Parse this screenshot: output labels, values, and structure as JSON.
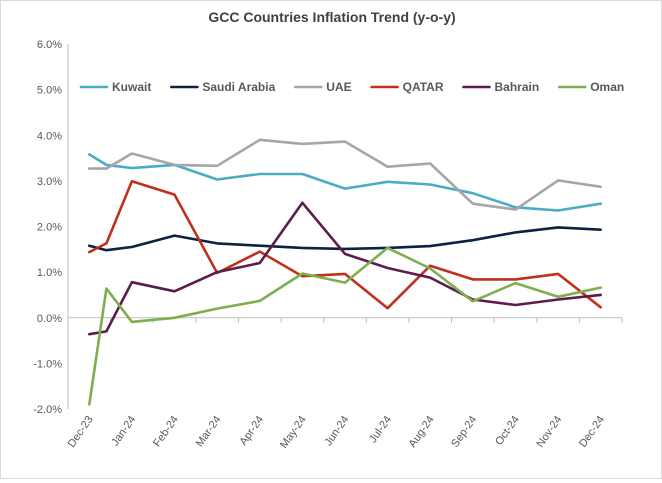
{
  "chart_data": {
    "type": "line",
    "title": "GCC Countries Inflation Trend (y-o-y)",
    "xlabel": "",
    "ylabel": "",
    "ylim": [
      -2.0,
      6.0
    ],
    "y_ticks": [
      -2.0,
      -1.0,
      0.0,
      1.0,
      2.0,
      3.0,
      4.0,
      5.0,
      6.0
    ],
    "y_tick_labels": [
      "-2.0%",
      "-1.0%",
      "0.0%",
      "1.0%",
      "2.0%",
      "3.0%",
      "4.0%",
      "5.0%",
      "6.0%"
    ],
    "categories": [
      "Dec-23",
      "Jan-24",
      "Feb-24",
      "Mar-24",
      "Apr-24",
      "May-24",
      "Jun-24",
      "Jul-24",
      "Aug-24",
      "Sep-24",
      "Oct-24",
      "Nov-24",
      "Dec-24"
    ],
    "grid": false,
    "legend_position": "top",
    "series": [
      {
        "name": "Kuwait",
        "color": "#4bacc6",
        "points": [
          [
            0,
            3.58
          ],
          [
            0.4,
            3.35
          ],
          [
            1,
            3.28
          ],
          [
            2,
            3.35
          ],
          [
            3,
            3.03
          ],
          [
            4,
            3.15
          ],
          [
            5,
            3.15
          ],
          [
            6,
            2.83
          ],
          [
            7,
            2.98
          ],
          [
            8,
            2.92
          ],
          [
            9,
            2.73
          ],
          [
            10,
            2.42
          ],
          [
            11,
            2.35
          ],
          [
            12,
            2.5
          ]
        ]
      },
      {
        "name": "Saudi Arabia",
        "color": "#0d2240",
        "points": [
          [
            0,
            1.58
          ],
          [
            0.4,
            1.48
          ],
          [
            1,
            1.55
          ],
          [
            2,
            1.8
          ],
          [
            3,
            1.63
          ],
          [
            4,
            1.58
          ],
          [
            5,
            1.53
          ],
          [
            6,
            1.51
          ],
          [
            7,
            1.53
          ],
          [
            8,
            1.57
          ],
          [
            9,
            1.7
          ],
          [
            10,
            1.87
          ],
          [
            11,
            1.98
          ],
          [
            12,
            1.93
          ]
        ]
      },
      {
        "name": "UAE",
        "color": "#a6a6a6",
        "points": [
          [
            0,
            3.27
          ],
          [
            0.4,
            3.27
          ],
          [
            1,
            3.6
          ],
          [
            2,
            3.35
          ],
          [
            3,
            3.33
          ],
          [
            4,
            3.9
          ],
          [
            5,
            3.81
          ],
          [
            6,
            3.86
          ],
          [
            7,
            3.31
          ],
          [
            8,
            3.38
          ],
          [
            9,
            2.5
          ],
          [
            10,
            2.37
          ],
          [
            11,
            3.01
          ],
          [
            12,
            2.87
          ]
        ]
      },
      {
        "name": "QATAR",
        "color": "#c0311c",
        "points": [
          [
            0,
            1.44
          ],
          [
            0.4,
            1.63
          ],
          [
            1,
            2.99
          ],
          [
            2,
            2.7
          ],
          [
            3,
            0.98
          ],
          [
            4,
            1.45
          ],
          [
            5,
            0.91
          ],
          [
            6,
            0.96
          ],
          [
            7,
            0.21
          ],
          [
            8,
            1.14
          ],
          [
            9,
            0.84
          ],
          [
            10,
            0.84
          ],
          [
            11,
            0.96
          ],
          [
            12,
            0.23
          ]
        ]
      },
      {
        "name": "Bahrain",
        "color": "#5c1d4c",
        "points": [
          [
            0,
            -0.36
          ],
          [
            0.4,
            -0.3
          ],
          [
            1,
            0.78
          ],
          [
            2,
            0.58
          ],
          [
            3,
            1.0
          ],
          [
            4,
            1.2
          ],
          [
            5,
            2.52
          ],
          [
            6,
            1.4
          ],
          [
            7,
            1.09
          ],
          [
            8,
            0.88
          ],
          [
            9,
            0.4
          ],
          [
            10,
            0.28
          ],
          [
            11,
            0.4
          ],
          [
            12,
            0.5
          ]
        ]
      },
      {
        "name": "Oman",
        "color": "#7fae4f",
        "points": [
          [
            0,
            -1.9
          ],
          [
            0.4,
            0.64
          ],
          [
            1,
            -0.09
          ],
          [
            2,
            0.0
          ],
          [
            3,
            0.2
          ],
          [
            4,
            0.37
          ],
          [
            5,
            0.97
          ],
          [
            6,
            0.77
          ],
          [
            7,
            1.53
          ],
          [
            8,
            1.08
          ],
          [
            9,
            0.36
          ],
          [
            10,
            0.76
          ],
          [
            11,
            0.46
          ],
          [
            12,
            0.66
          ]
        ]
      }
    ]
  }
}
